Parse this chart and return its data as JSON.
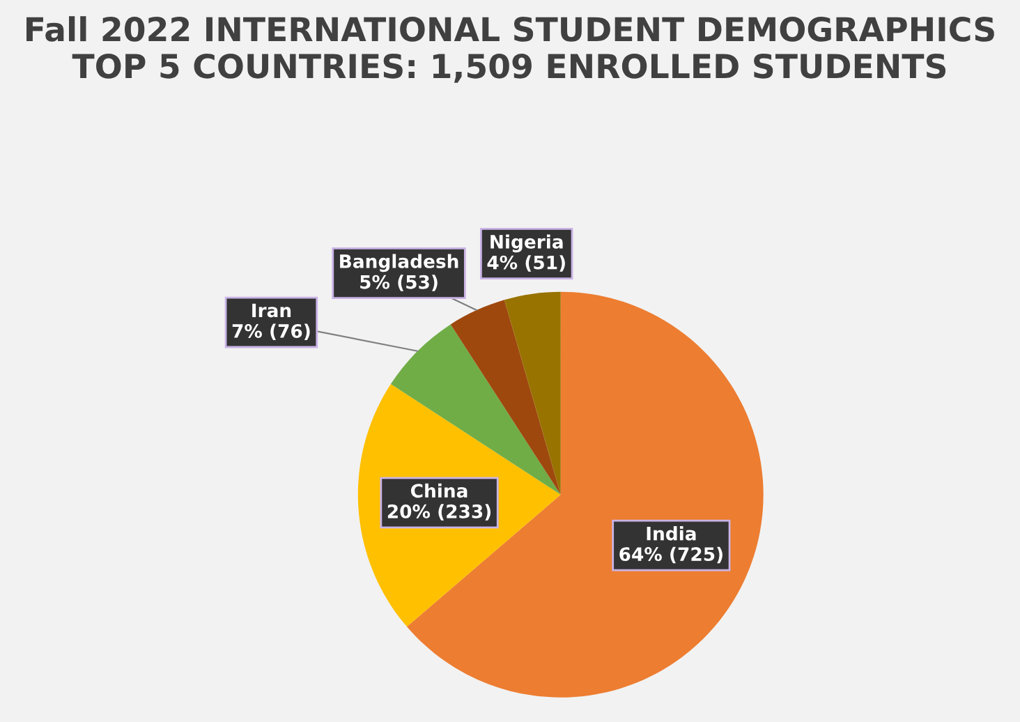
{
  "chart_data": {
    "type": "pie",
    "title": "Fall 2022 INTERNATIONAL STUDENT DEMOGRAPHICS\nTOP 5 COUNTRIES: 1,509 ENROLLED STUDENTS",
    "categories": [
      "India",
      "China",
      "Iran",
      "Bangladesh",
      "Nigeria"
    ],
    "values": [
      725,
      233,
      76,
      53,
      51
    ],
    "colors": [
      "#ed7d31",
      "#ffc000",
      "#70ad47",
      "#9e480e",
      "#997300"
    ],
    "value_labels": [
      "64% (725)",
      "20% (233)",
      "7% (76)",
      "5% (53)",
      "4% (51)"
    ],
    "legend": false
  }
}
